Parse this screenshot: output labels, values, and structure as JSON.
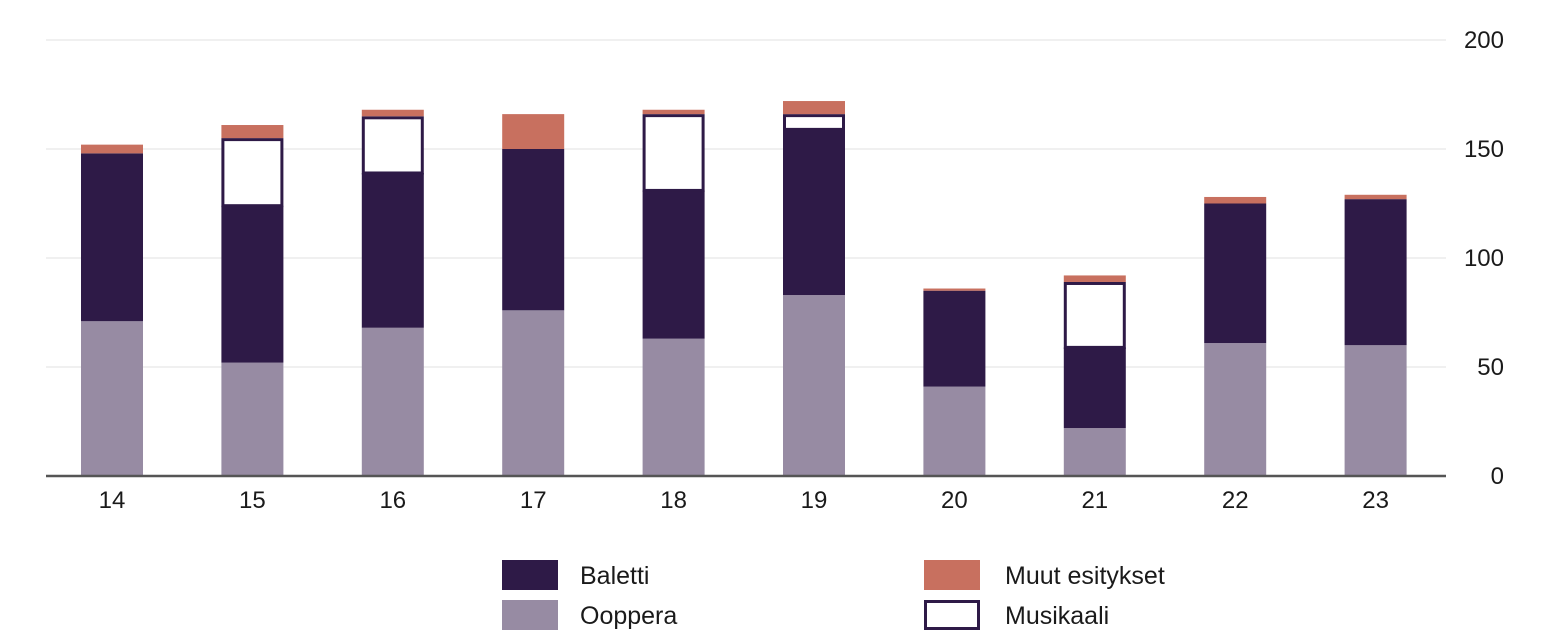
{
  "chart_data": {
    "type": "bar",
    "stacked": true,
    "title": "",
    "xlabel": "",
    "ylabel": "",
    "categories": [
      "14",
      "15",
      "16",
      "17",
      "18",
      "19",
      "20",
      "21",
      "22",
      "23"
    ],
    "ylim": [
      0,
      200
    ],
    "yticks": [
      0,
      50,
      100,
      150,
      200
    ],
    "y_axis_position": "right",
    "grid": true,
    "legend_position": "bottom",
    "series": [
      {
        "name": "Ooppera",
        "color": "#978ba3",
        "values": [
          71,
          52,
          68,
          76,
          63,
          83,
          41,
          22,
          61,
          60
        ]
      },
      {
        "name": "Baletti",
        "color": "#2e1a47",
        "values": [
          77,
          72,
          71,
          74,
          68,
          76,
          44,
          37,
          64,
          67
        ]
      },
      {
        "name": "Musikaali",
        "color": "#ffffff",
        "stroke": "#2e1a47",
        "values": [
          0,
          31,
          26,
          0,
          35,
          7,
          0,
          30,
          0,
          0
        ]
      },
      {
        "name": "Muut esitykset",
        "color": "#c8705f",
        "values": [
          4,
          6,
          3,
          16,
          2,
          6,
          1,
          3,
          3,
          2
        ]
      }
    ],
    "legend": {
      "left": [
        "Baletti",
        "Ooppera"
      ],
      "right": [
        "Muut esitykset",
        "Musikaali"
      ]
    }
  }
}
